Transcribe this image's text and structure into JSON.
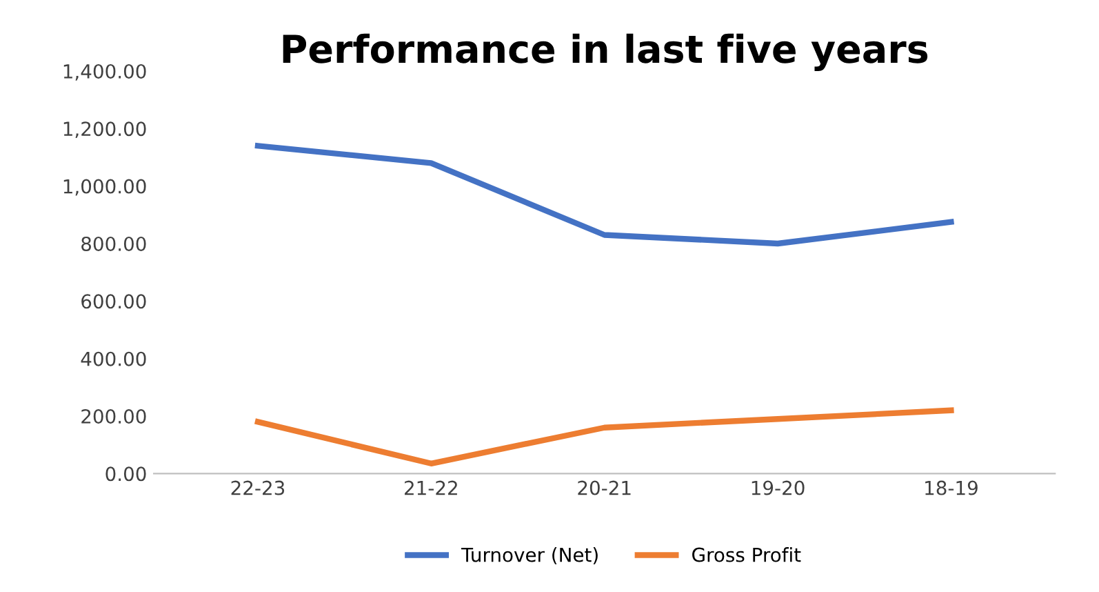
{
  "chart_data": {
    "type": "line",
    "title": "Performance in last five years",
    "categories": [
      "22-23",
      "21-22",
      "20-21",
      "19-20",
      "18-19"
    ],
    "series": [
      {
        "name": "Turnover (Net)",
        "color": "#4472c4",
        "values": [
          1140,
          1080,
          830,
          800,
          875
        ]
      },
      {
        "name": "Gross Profit",
        "color": "#ed7d31",
        "values": [
          180,
          35,
          160,
          190,
          220
        ]
      }
    ],
    "ylim": [
      0,
      1400
    ],
    "yticks": [
      {
        "value": 0,
        "label": "0.00"
      },
      {
        "value": 200,
        "label": "200.00"
      },
      {
        "value": 400,
        "label": "400.00"
      },
      {
        "value": 600,
        "label": "600.00"
      },
      {
        "value": 800,
        "label": "800.00"
      },
      {
        "value": 1000,
        "label": "1,000.00"
      },
      {
        "value": 1200,
        "label": "1,200.00"
      },
      {
        "value": 1400,
        "label": "1,400.00"
      }
    ],
    "grid": false,
    "legend": "bottom",
    "marker": "none",
    "line_style": "solid"
  }
}
